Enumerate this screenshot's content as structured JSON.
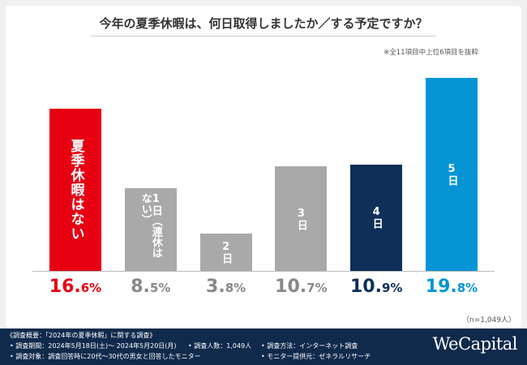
{
  "title": "今年の夏季休暇は、何日取得しましたか／する予定ですか？",
  "note": "※全11項目中上位6項目を抜粋",
  "sample_note": "（n=1,049人）",
  "chart_data": {
    "type": "bar",
    "title": "今年の夏季休暇は、何日取得しましたか／する予定ですか？",
    "unit": "%",
    "ylim": [
      0,
      20
    ],
    "grid": false,
    "categories": [
      "夏季休暇はない",
      "1日（連休はない）",
      "2日",
      "3日",
      "4日",
      "5日"
    ],
    "values": [
      16.6,
      8.5,
      3.8,
      10.7,
      10.9,
      19.8
    ],
    "value_labels": [
      {
        "int": "16.",
        "dec": "6%"
      },
      {
        "int": "8.",
        "dec": "5%"
      },
      {
        "int": "3.",
        "dec": "8%"
      },
      {
        "int": "10.",
        "dec": "7%"
      },
      {
        "int": "10.",
        "dec": "9%"
      },
      {
        "int": "19.",
        "dec": "8%"
      }
    ],
    "bar_colors": [
      "#e60012",
      "#a9a9a9",
      "#a9a9a9",
      "#a9a9a9",
      "#0e2f5a",
      "#0595d5"
    ],
    "value_colors": [
      "#e60012",
      "#888888",
      "#888888",
      "#888888",
      "#0e2f5a",
      "#0595d5"
    ]
  },
  "footer": {
    "line1": "《調査概要：「2024年の夏季休暇」に関する調査》",
    "period": "• 調査期間：2024年5月18日(土)～ 2024年5月20日(月)",
    "people": "• 調査人数：1,049人",
    "method": "• 調査方法：インターネット調査",
    "target": "• 調査対象：調査回答時に20代～30代の男女と回答したモニター",
    "provider": "• モニター提供元：ゼネラルリサーチ",
    "logo": "WeCapital"
  }
}
